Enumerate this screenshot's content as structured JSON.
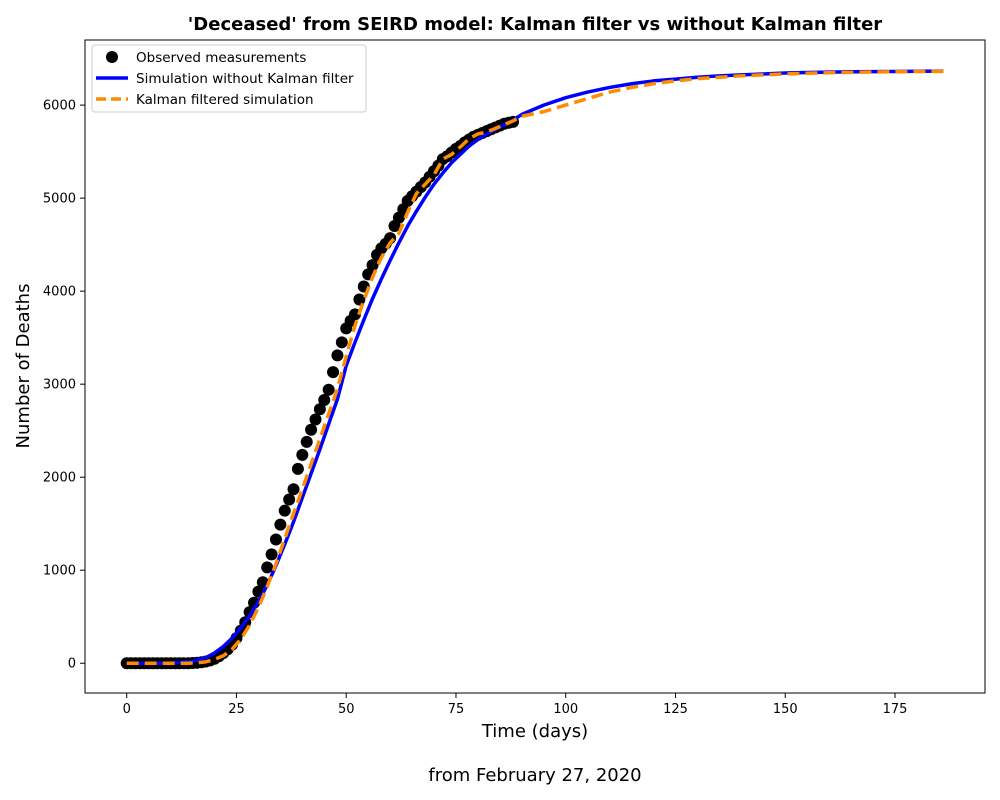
{
  "chart_data": {
    "type": "line",
    "title": "'Deceased' from SEIRD model: Kalman filter vs without Kalman filter",
    "xlabel": "Time (days)",
    "ylabel": "Number of Deaths",
    "caption": "from February 27, 2020",
    "xlim": [
      -9.5,
      195.5
    ],
    "ylim": [
      -320,
      6700
    ],
    "xticks": [
      0,
      25,
      50,
      75,
      100,
      125,
      150,
      175
    ],
    "yticks": [
      0,
      1000,
      2000,
      3000,
      4000,
      5000,
      6000
    ],
    "grid": false,
    "legend_position": "top-left",
    "series": [
      {
        "name": "Observed measurements",
        "kind": "scatter",
        "color": "#000000",
        "x": [
          0,
          1,
          2,
          3,
          4,
          5,
          6,
          7,
          8,
          9,
          10,
          11,
          12,
          13,
          14,
          15,
          16,
          17,
          18,
          19,
          20,
          21,
          22,
          23,
          24,
          25,
          26,
          27,
          28,
          29,
          30,
          31,
          32,
          33,
          34,
          35,
          36,
          37,
          38,
          39,
          40,
          41,
          42,
          43,
          44,
          45,
          46,
          47,
          48,
          49,
          50,
          51,
          52,
          53,
          54,
          55,
          56,
          57,
          58,
          59,
          60,
          61,
          62,
          63,
          64,
          65,
          66,
          67,
          68,
          69,
          70,
          71,
          72,
          73,
          74,
          75,
          76,
          77,
          78,
          79,
          80,
          81,
          82,
          83,
          84,
          85,
          86,
          87,
          88
        ],
        "y": [
          0,
          0,
          0,
          0,
          0,
          0,
          0,
          0,
          0,
          0,
          0,
          0,
          0,
          0,
          0,
          2,
          5,
          10,
          18,
          30,
          48,
          75,
          110,
          150,
          200,
          270,
          350,
          440,
          550,
          650,
          770,
          870,
          1030,
          1170,
          1330,
          1490,
          1640,
          1760,
          1870,
          2090,
          2240,
          2380,
          2510,
          2620,
          2730,
          2830,
          2940,
          3130,
          3310,
          3450,
          3600,
          3680,
          3750,
          3910,
          4050,
          4180,
          4280,
          4390,
          4460,
          4510,
          4570,
          4700,
          4790,
          4880,
          4970,
          5020,
          5070,
          5120,
          5170,
          5230,
          5290,
          5350,
          5420,
          5450,
          5490,
          5530,
          5560,
          5600,
          5630,
          5660,
          5680,
          5700,
          5720,
          5740,
          5760,
          5780,
          5800,
          5810,
          5820
        ]
      },
      {
        "name": "Simulation without Kalman filter",
        "kind": "line",
        "color": "#0000ff",
        "x": [
          0,
          5,
          10,
          15,
          18,
          20,
          22,
          24,
          26,
          28,
          30,
          32,
          34,
          36,
          38,
          40,
          42,
          44,
          46,
          48,
          50,
          52,
          54,
          56,
          58,
          60,
          62,
          64,
          66,
          68,
          70,
          72,
          74,
          76,
          78,
          80,
          82,
          84,
          86,
          88,
          90,
          95,
          100,
          105,
          110,
          115,
          120,
          125,
          130,
          135,
          140,
          145,
          150,
          155,
          160,
          165,
          170,
          175,
          180,
          186
        ],
        "y": [
          0,
          0,
          0,
          20,
          60,
          110,
          180,
          270,
          380,
          510,
          660,
          840,
          1050,
          1280,
          1520,
          1780,
          2040,
          2300,
          2570,
          2840,
          3200,
          3450,
          3690,
          3920,
          4130,
          4330,
          4520,
          4700,
          4860,
          5010,
          5150,
          5270,
          5380,
          5470,
          5560,
          5630,
          5690,
          5740,
          5790,
          5840,
          5900,
          6000,
          6080,
          6140,
          6190,
          6230,
          6260,
          6280,
          6300,
          6315,
          6325,
          6335,
          6345,
          6350,
          6355,
          6358,
          6360,
          6362,
          6364,
          6365
        ]
      },
      {
        "name": "Kalman filtered simulation",
        "kind": "dashed-line",
        "color": "#ff8c00",
        "x": [
          0,
          5,
          10,
          14,
          16,
          18,
          20,
          22,
          24,
          26,
          28,
          30,
          32,
          34,
          36,
          38,
          40,
          42,
          44,
          46,
          48,
          50,
          52,
          54,
          56,
          58,
          60,
          62,
          64,
          66,
          68,
          70,
          72,
          74,
          76,
          78,
          80,
          82,
          84,
          86,
          88,
          90,
          95,
          100,
          105,
          110,
          115,
          120,
          125,
          130,
          135,
          140,
          145,
          150,
          155,
          160,
          165,
          170,
          175,
          180,
          186
        ],
        "y": [
          0,
          0,
          0,
          0,
          5,
          15,
          40,
          80,
          150,
          260,
          410,
          600,
          820,
          1070,
          1340,
          1610,
          1870,
          2140,
          2410,
          2680,
          2950,
          3300,
          3630,
          3900,
          4150,
          4360,
          4520,
          4620,
          4850,
          5050,
          5150,
          5250,
          5420,
          5470,
          5550,
          5640,
          5690,
          5710,
          5750,
          5790,
          5830,
          5880,
          5930,
          6000,
          6070,
          6140,
          6190,
          6230,
          6260,
          6285,
          6300,
          6315,
          6325,
          6335,
          6342,
          6348,
          6352,
          6356,
          6359,
          6361,
          6363
        ]
      }
    ]
  }
}
